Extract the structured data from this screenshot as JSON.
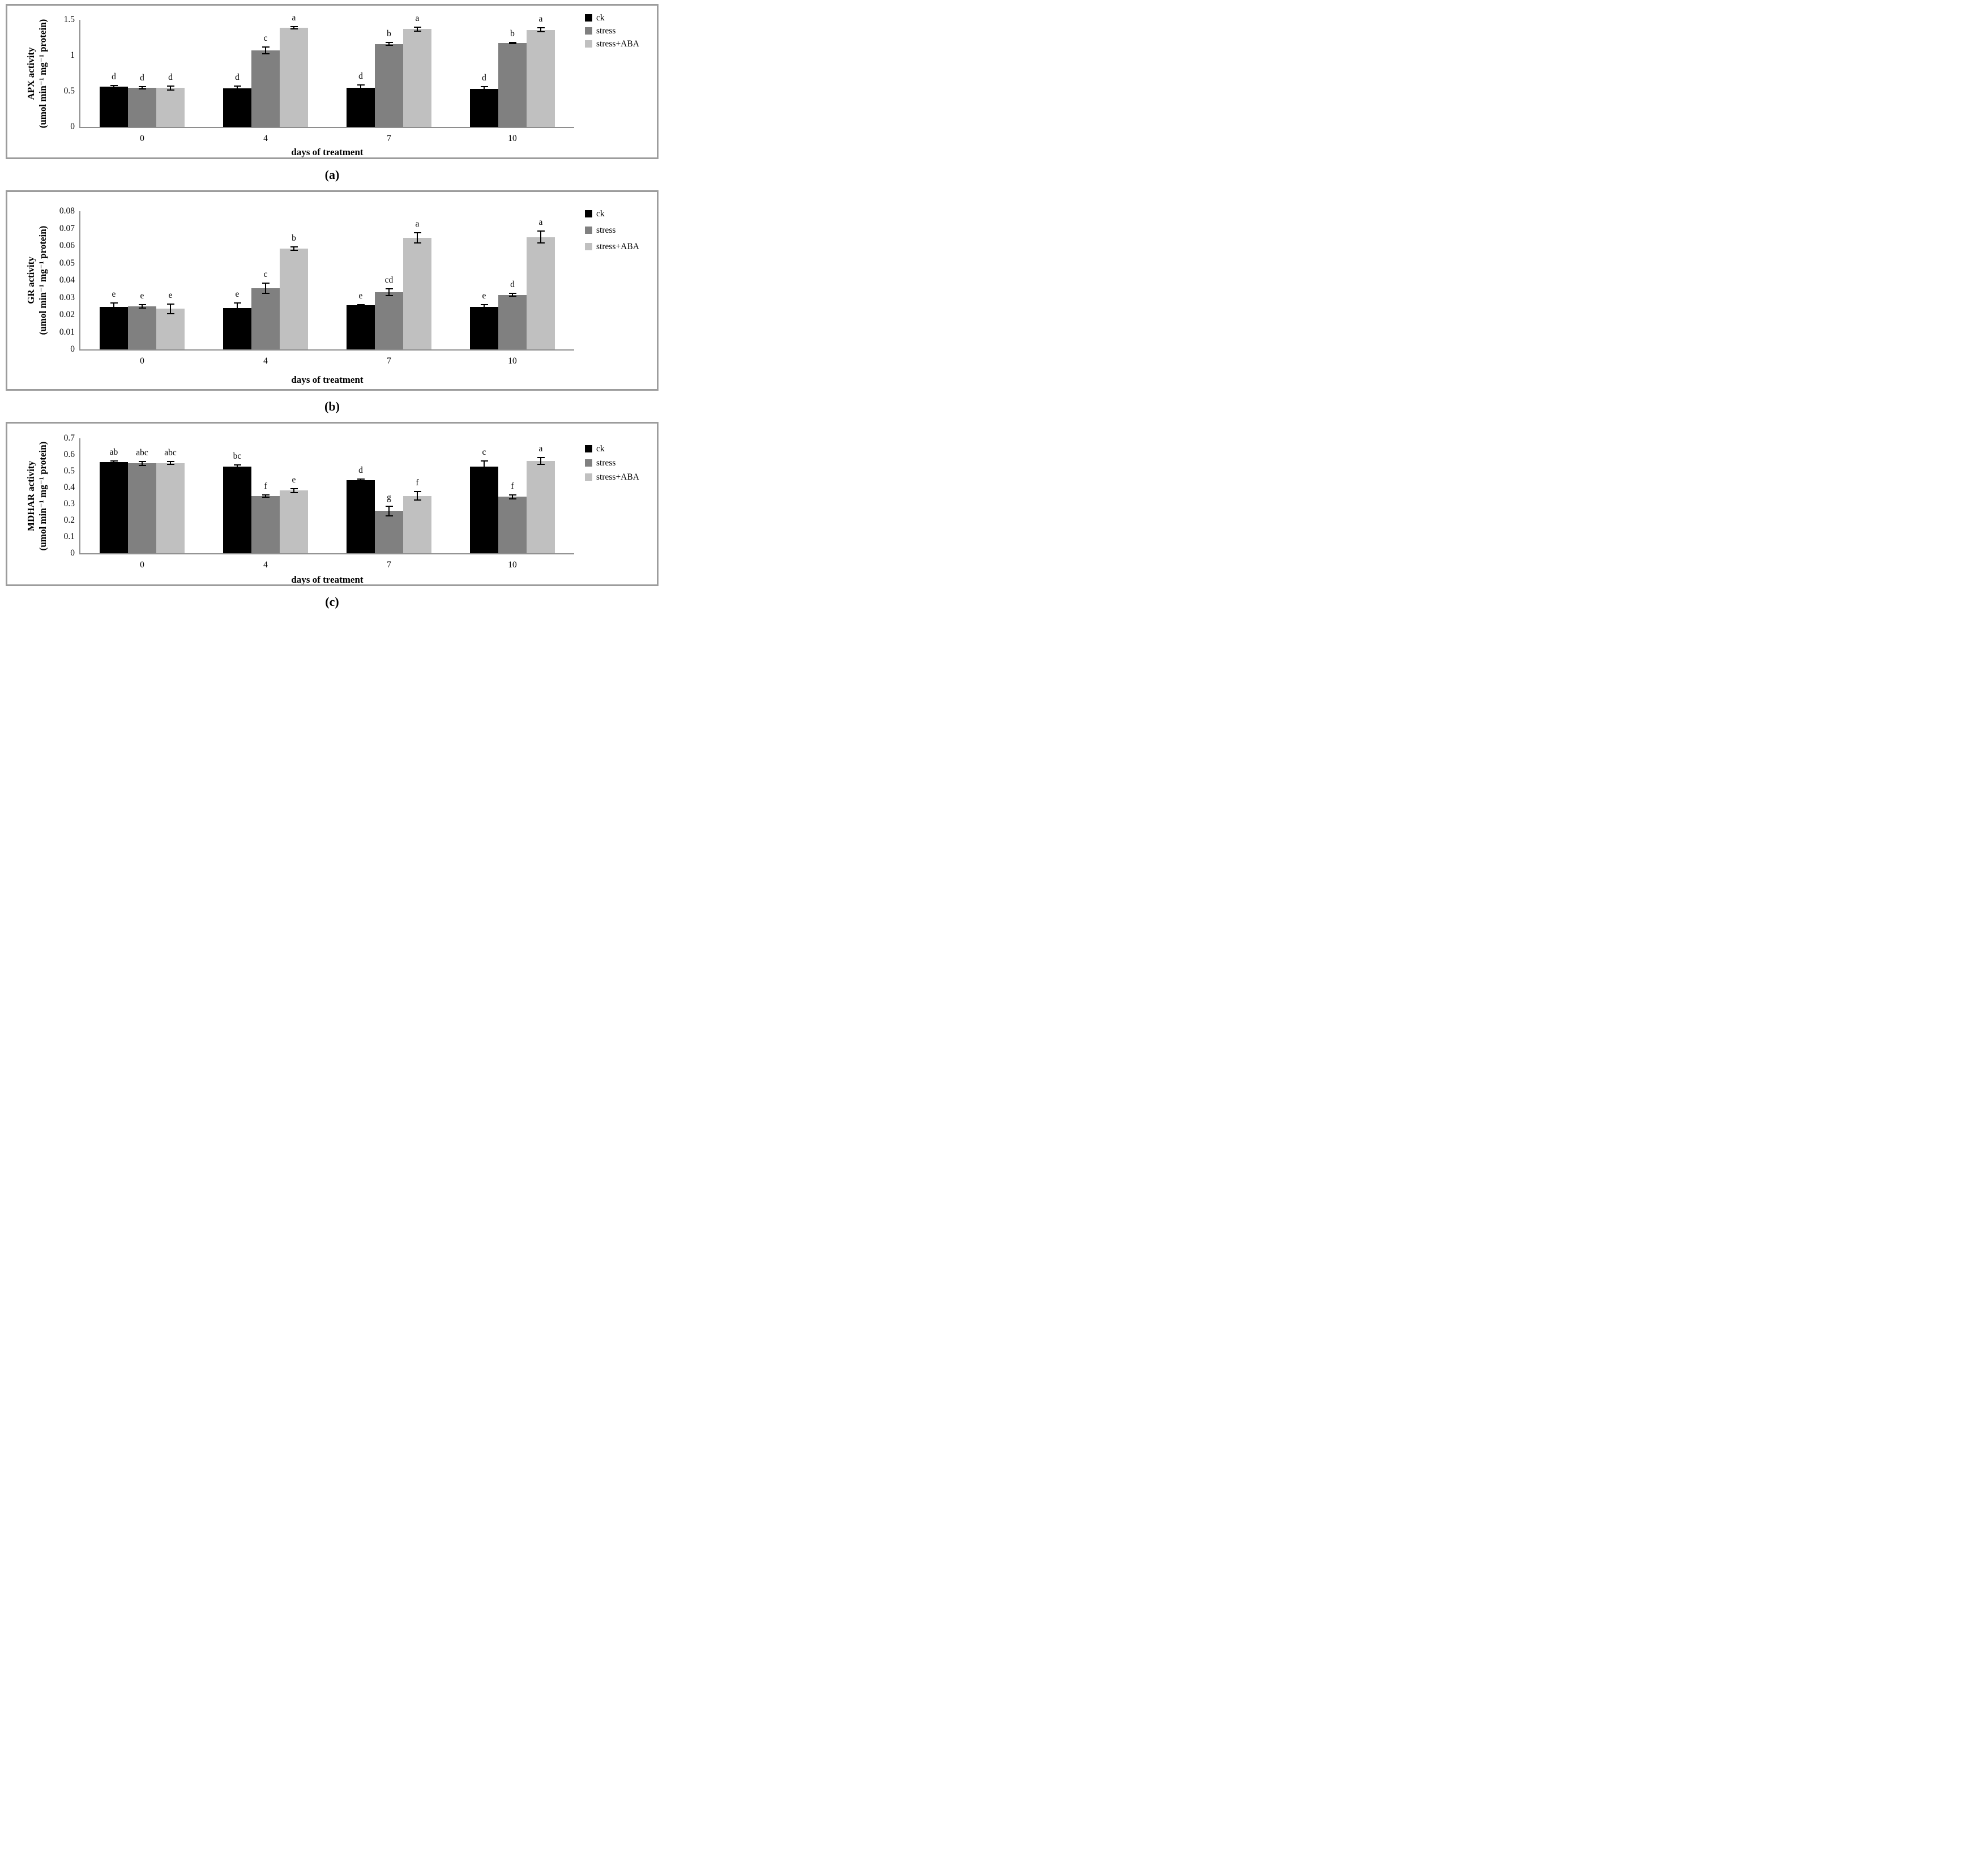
{
  "shared": {
    "xlabel": "days of treatment",
    "legend": [
      {
        "label": "ck",
        "color": "#000000"
      },
      {
        "label": "stress",
        "color": "#808080"
      },
      {
        "label": "stress+ABA",
        "color": "#c0c0c0"
      }
    ]
  },
  "chart_data": [
    {
      "id": "a",
      "caption": "(a)",
      "type": "bar",
      "ylabel_line1": "APX activity",
      "ylabel_line2": "(umol min⁻¹ mg⁻¹ protein)",
      "xlabel": "days of treatment",
      "categories": [
        "0",
        "4",
        "7",
        "10"
      ],
      "ylim": [
        0,
        1.5
      ],
      "ytick_values": [
        0,
        0.5,
        1,
        1.5
      ],
      "ytick_labels": [
        "0",
        "0.5",
        "1",
        "1.5"
      ],
      "grid": false,
      "legend_position": "top-right",
      "series": [
        {
          "name": "ck",
          "color": "#000000",
          "values": [
            0.56,
            0.54,
            0.545,
            0.53
          ],
          "errors": [
            0.02,
            0.035,
            0.045,
            0.03
          ],
          "sig_letters": [
            "d",
            "d",
            "d",
            "d"
          ]
        },
        {
          "name": "stress",
          "color": "#808080",
          "values": [
            0.55,
            1.07,
            1.16,
            1.175
          ],
          "errors": [
            0.015,
            0.05,
            0.02,
            0.01
          ],
          "sig_letters": [
            "d",
            "c",
            "b",
            "b"
          ]
        },
        {
          "name": "stress+ABA",
          "color": "#c0c0c0",
          "values": [
            0.545,
            1.39,
            1.37,
            1.36
          ],
          "errors": [
            0.03,
            0.015,
            0.025,
            0.025
          ],
          "sig_letters": [
            "d",
            "a",
            "a",
            "a"
          ]
        }
      ]
    },
    {
      "id": "b",
      "caption": "(b)",
      "type": "bar",
      "ylabel_line1": "GR activity",
      "ylabel_line2": "(umol min⁻¹ mg⁻¹ protein)",
      "xlabel": "days of treatment",
      "categories": [
        "0",
        "4",
        "7",
        "10"
      ],
      "ylim": [
        0,
        0.08
      ],
      "ytick_values": [
        0,
        0.01,
        0.02,
        0.03,
        0.04,
        0.05,
        0.06,
        0.07,
        0.08
      ],
      "ytick_labels": [
        "0",
        "0.01",
        "0.02",
        "0.03",
        "0.04",
        "0.05",
        "0.06",
        "0.07",
        "0.08"
      ],
      "grid": false,
      "legend_position": "top-right",
      "series": [
        {
          "name": "ck",
          "color": "#000000",
          "values": [
            0.0245,
            0.024,
            0.0255,
            0.0245
          ],
          "errors": [
            0.0025,
            0.003,
            0.0005,
            0.0015
          ],
          "sig_letters": [
            "e",
            "e",
            "e",
            "e"
          ]
        },
        {
          "name": "stress",
          "color": "#808080",
          "values": [
            0.025,
            0.0355,
            0.033,
            0.0315
          ],
          "errors": [
            0.001,
            0.003,
            0.002,
            0.0008
          ],
          "sig_letters": [
            "e",
            "c",
            "cd",
            "d"
          ]
        },
        {
          "name": "stress+ABA",
          "color": "#c0c0c0",
          "values": [
            0.0235,
            0.0585,
            0.0645,
            0.065
          ],
          "errors": [
            0.0028,
            0.001,
            0.003,
            0.0035
          ],
          "sig_letters": [
            "e",
            "b",
            "a",
            "a"
          ]
        }
      ]
    },
    {
      "id": "c",
      "caption": "(c)",
      "type": "bar",
      "ylabel_line1": "MDHAR activity",
      "ylabel_line2": "(umol min⁻¹ mg⁻¹ protein)",
      "xlabel": "days of treatment",
      "categories": [
        "0",
        "4",
        "7",
        "10"
      ],
      "ylim": [
        0,
        0.7
      ],
      "ytick_values": [
        0,
        0.1,
        0.2,
        0.3,
        0.4,
        0.5,
        0.6,
        0.7
      ],
      "ytick_labels": [
        "0",
        "0.1",
        "0.2",
        "0.3",
        "0.4",
        "0.5",
        "0.6",
        "0.7"
      ],
      "grid": false,
      "legend_position": "top-right",
      "series": [
        {
          "name": "ck",
          "color": "#000000",
          "values": [
            0.555,
            0.528,
            0.445,
            0.528
          ],
          "errors": [
            0.008,
            0.01,
            0.006,
            0.035
          ],
          "sig_letters": [
            "ab",
            "bc",
            "d",
            "c"
          ]
        },
        {
          "name": "stress",
          "color": "#808080",
          "values": [
            0.548,
            0.347,
            0.257,
            0.344
          ],
          "errors": [
            0.012,
            0.007,
            0.028,
            0.012
          ],
          "sig_letters": [
            "abc",
            "f",
            "g",
            "f"
          ]
        },
        {
          "name": "stress+ABA",
          "color": "#c0c0c0",
          "values": [
            0.55,
            0.382,
            0.35,
            0.562
          ],
          "errors": [
            0.009,
            0.012,
            0.025,
            0.02
          ],
          "sig_letters": [
            "abc",
            "e",
            "f",
            "a"
          ]
        }
      ]
    }
  ]
}
